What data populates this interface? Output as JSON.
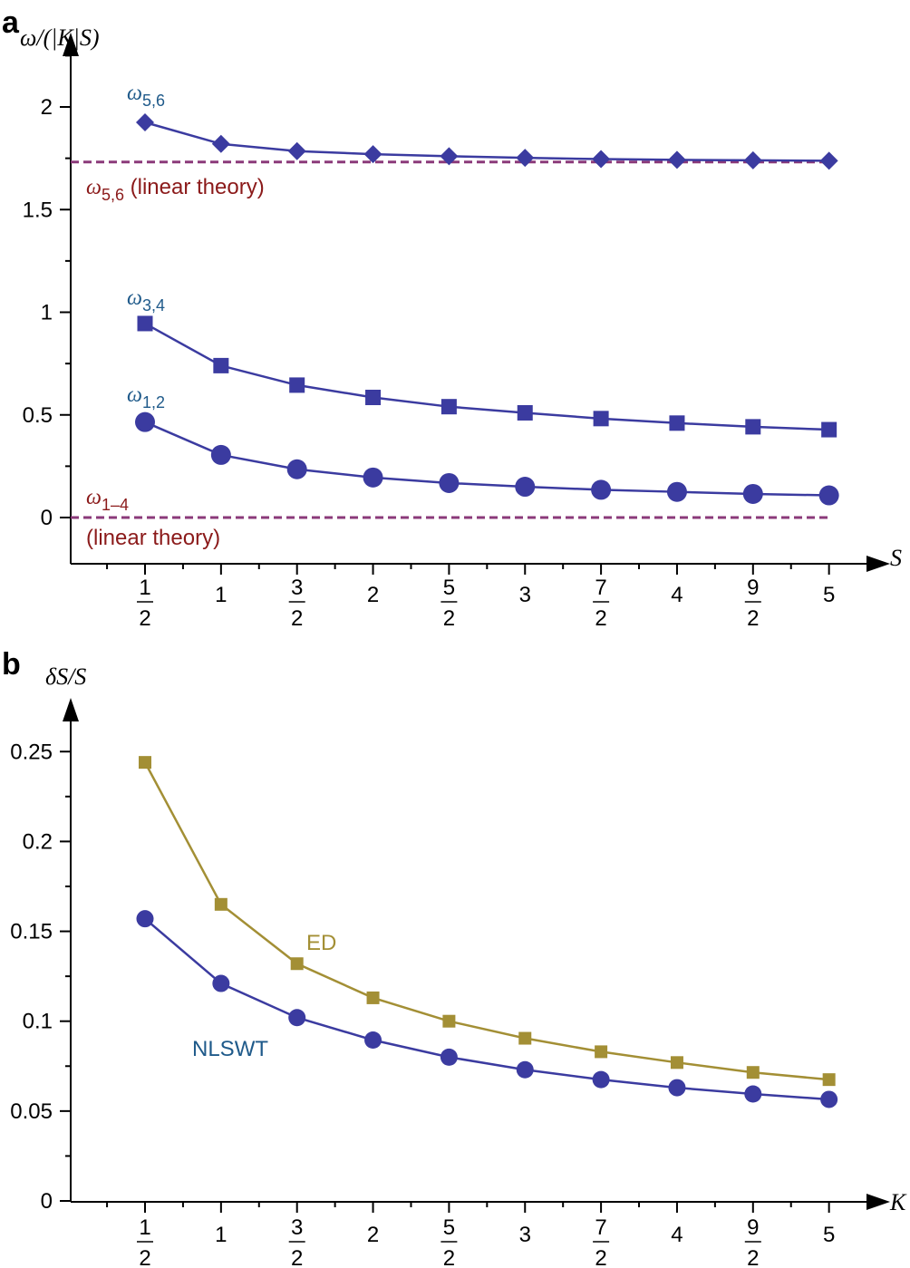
{
  "chart_data": [
    {
      "panel": "a",
      "type": "line",
      "ylabel": "ω/(|K|S)",
      "xlabel": "S",
      "ylim": [
        -0.2,
        2.25
      ],
      "yticks": [
        0,
        0.5,
        1,
        1.5,
        2
      ],
      "ytick_labels": [
        "0",
        "0.5",
        "1",
        "1.5",
        "2"
      ],
      "x": [
        0.5,
        1,
        1.5,
        2,
        2.5,
        3,
        3.5,
        4,
        4.5,
        5
      ],
      "xtick_labels": [
        [
          "1",
          "2"
        ],
        "1",
        [
          "3",
          "2"
        ],
        "2",
        [
          "5",
          "2"
        ],
        "3",
        [
          "7",
          "2"
        ],
        "4",
        [
          "9",
          "2"
        ],
        "5"
      ],
      "series": [
        {
          "label": "ω",
          "sub": "5,6",
          "marker": "diamond",
          "color": "#3b3ba0",
          "values": [
            1.925,
            1.82,
            1.785,
            1.77,
            1.76,
            1.752,
            1.746,
            1.742,
            1.74,
            1.738
          ]
        },
        {
          "label": "ω",
          "sub": "3,4",
          "marker": "square",
          "color": "#3b3ba0",
          "values": [
            0.945,
            0.74,
            0.645,
            0.585,
            0.54,
            0.51,
            0.482,
            0.46,
            0.442,
            0.428
          ]
        },
        {
          "label": "ω",
          "sub": "1,2",
          "marker": "circle",
          "color": "#3b3ba0",
          "values": [
            0.465,
            0.305,
            0.235,
            0.195,
            0.168,
            0.15,
            0.135,
            0.125,
            0.115,
            0.108
          ]
        }
      ],
      "reference_lines": [
        {
          "y": 1.732,
          "label_sym": "ω",
          "label_sub": "5,6",
          "label_text": " (linear theory)",
          "color": "#8b3a7a"
        },
        {
          "y": 0,
          "label_sym": "ω",
          "label_sub": "1–4",
          "label_text": "(linear theory)",
          "color": "#8b3a7a"
        }
      ]
    },
    {
      "panel": "b",
      "type": "line",
      "ylabel": "δS/S",
      "xlabel": "K",
      "ylim": [
        0,
        0.275
      ],
      "yticks": [
        0,
        0.05,
        0.1,
        0.15,
        0.2,
        0.25
      ],
      "ytick_labels": [
        "0",
        "0.05",
        "0.1",
        "0.15",
        "0.2",
        "0.25"
      ],
      "x": [
        0.5,
        1,
        1.5,
        2,
        2.5,
        3,
        3.5,
        4,
        4.5,
        5
      ],
      "xtick_labels": [
        [
          "1",
          "2"
        ],
        "1",
        [
          "3",
          "2"
        ],
        "2",
        [
          "5",
          "2"
        ],
        "3",
        [
          "7",
          "2"
        ],
        "4",
        [
          "9",
          "2"
        ],
        "5"
      ],
      "series": [
        {
          "name": "ED",
          "marker": "square",
          "color": "#a38f35",
          "values": [
            0.244,
            0.165,
            0.132,
            0.113,
            0.1,
            0.0905,
            0.083,
            0.077,
            0.0715,
            0.0675
          ]
        },
        {
          "name": "NLSWT",
          "marker": "circle",
          "color": "#3b3ba0",
          "label_color": "#1f5a8a",
          "values": [
            0.157,
            0.121,
            0.102,
            0.0895,
            0.08,
            0.073,
            0.0675,
            0.063,
            0.0595,
            0.0565
          ]
        }
      ]
    }
  ],
  "panel_labels": [
    "a",
    "b"
  ]
}
